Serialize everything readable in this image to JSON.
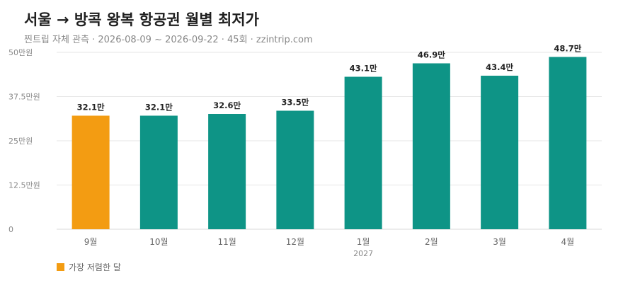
{
  "title": "서울 → 방콕 왕복 항공권 월별 최저가",
  "subtitle": "찐트립 자체 관측 · 2026-08-09 ~ 2026-09-22 · 45회 · zzintrip.com",
  "legend": {
    "label": "가장 저렴한 달",
    "color": "#f39c12"
  },
  "colors": {
    "highlight": "#f39c12",
    "bar": "#0e9486",
    "grid": "#e6e6e6",
    "tick_text": "#888888",
    "label_text": "#222222"
  },
  "chart_data": {
    "type": "bar",
    "categories": [
      "9월",
      "10월",
      "11월",
      "12월",
      "1월",
      "2월",
      "3월",
      "4월"
    ],
    "category_sublabels": [
      "",
      "",
      "",
      "",
      "2027",
      "",
      "",
      ""
    ],
    "values": [
      32.1,
      32.1,
      32.6,
      33.5,
      43.1,
      46.9,
      43.4,
      48.7
    ],
    "value_labels": [
      "32.1만",
      "32.1만",
      "32.6만",
      "33.5만",
      "43.1만",
      "46.9만",
      "43.4만",
      "48.7만"
    ],
    "highlight_index": 0,
    "ylim": [
      0,
      50
    ],
    "yticks": [
      0,
      12.5,
      25,
      37.5,
      50
    ],
    "ytick_labels": [
      "0",
      "12.5만원",
      "25만원",
      "37.5만원",
      "50만원"
    ],
    "grid": true,
    "legend_position": "bottom-left"
  }
}
